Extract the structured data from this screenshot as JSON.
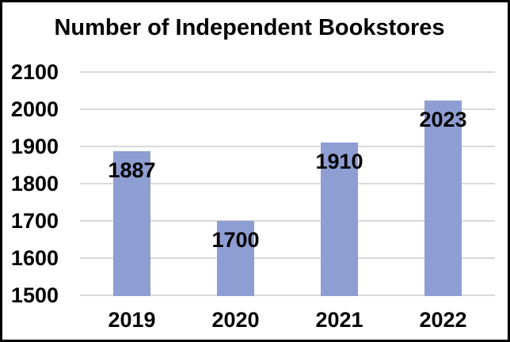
{
  "chart_data": {
    "type": "bar",
    "title": "Number of Independent Bookstores",
    "categories": [
      "2019",
      "2020",
      "2021",
      "2022"
    ],
    "values": [
      1887,
      1700,
      1910,
      2023
    ],
    "data_labels": [
      "1887",
      "1700",
      "1910",
      "2023"
    ],
    "data_label_position": "inside-end",
    "xlabel": "",
    "ylabel": "",
    "ylim": [
      1500,
      2100
    ],
    "ytick_step": 100,
    "yticks": [
      2100,
      2000,
      1900,
      1800,
      1700,
      1600,
      1500
    ],
    "grid": true,
    "legend_position": "none",
    "colors": {
      "bar": "#8E9ED2",
      "gridline": "#D9D9D9",
      "text": "#000000",
      "background": "#FFFFFF",
      "border": "#000000"
    }
  }
}
